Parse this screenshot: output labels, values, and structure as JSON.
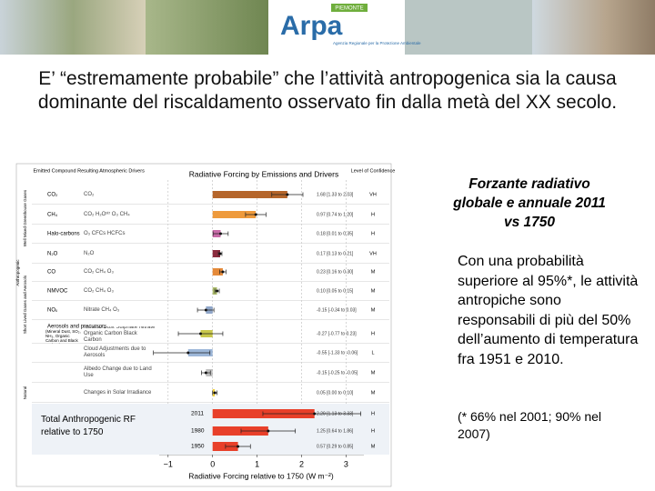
{
  "header": {
    "logo": "Arpa",
    "badge": "PIEMONTE",
    "logo_subtitle": "Agenzia Regionale per la Protezione Ambientale"
  },
  "title": "E’ “estremamente probabile” che l’attività antropogenica sia la causa dominante del riscaldamento osservato fin dalla metà del XX secolo.",
  "figure": {
    "title": "Radiative Forcing by Emissions and Drivers",
    "headers": [
      "Emitted Compound",
      "Resulting Atmospheric Drivers",
      "Level of Confidence"
    ],
    "groups": [
      "Well Mixed Greenhouse Gases",
      "Short Lived Gases and Aerosols",
      "Anthropogenic",
      "Natural"
    ],
    "rows": [
      {
        "compound": "CO₂",
        "drivers": "CO₂",
        "value": 1.68,
        "low": 1.33,
        "high": 2.03,
        "label": "1.68 [1.33 to 2.03]",
        "confidence": "VH",
        "color": "#b5652a"
      },
      {
        "compound": "CH₄",
        "drivers": "CO₂  H₂Oˢᵗʳ  O₃  CH₄",
        "value": 0.97,
        "low": 0.74,
        "high": 1.2,
        "label": "0.97 [0.74 to 1.20]",
        "confidence": "H",
        "color": "#ee9a3c"
      },
      {
        "compound": "Halo-carbons",
        "drivers": "O₃  CFCs  HCFCs",
        "value": 0.18,
        "low": 0.01,
        "high": 0.35,
        "label": "0.18 [0.01 to 0.35]",
        "confidence": "H",
        "color": "#c86ba8"
      },
      {
        "compound": "N₂O",
        "drivers": "N₂O",
        "value": 0.17,
        "low": 0.13,
        "high": 0.21,
        "label": "0.17 [0.13 to 0.21]",
        "confidence": "VH",
        "color": "#8b2c3e"
      },
      {
        "compound": "CO",
        "drivers": "CO₂  CH₄  O₃",
        "value": 0.23,
        "low": 0.16,
        "high": 0.3,
        "label": "0.23 [0.16 to 0.30]",
        "confidence": "M",
        "color": "#e58a3a"
      },
      {
        "compound": "NMVOC",
        "drivers": "CO₂  CH₄  O₃",
        "value": 0.1,
        "low": 0.05,
        "high": 0.15,
        "label": "0.10 [0.05 to 0.15]",
        "confidence": "M",
        "color": "#a9b86a"
      },
      {
        "compound": "NOₓ",
        "drivers": "Nitrate  CH₄  O₃",
        "value": -0.15,
        "low": -0.34,
        "high": 0.03,
        "label": "-0.15 [-0.34 to 0.03]",
        "confidence": "M",
        "color": "#8fa6c9"
      },
      {
        "compound": "Aerosols and precursors",
        "compound_note": "(Mineral Dust, SO₂, NH₃, Organic Carbon and Black Carbon)",
        "drivers": "Mineral Dust  Sulphate  Nitrate  Organic Carbon  Black Carbon",
        "value": -0.27,
        "low": -0.77,
        "high": 0.23,
        "label": "-0.27 [-0.77 to 0.23]",
        "confidence": "H",
        "color": "#c9c84a"
      },
      {
        "drivers": "Cloud Adjustments due to Aerosols",
        "value": -0.55,
        "low": -1.33,
        "high": -0.06,
        "label": "-0.55 [-1.33 to -0.06]",
        "confidence": "L",
        "color": "#9db7d9"
      },
      {
        "drivers": "Albedo Change due to Land Use",
        "value": -0.15,
        "low": -0.25,
        "high": -0.05,
        "label": "-0.15 [-0.25 to -0.05]",
        "confidence": "M",
        "color": "#c0c0c0"
      },
      {
        "drivers": "Changes in Solar Irradiance",
        "value": 0.05,
        "low": 0.0,
        "high": 0.1,
        "label": "0.05 [0.00 to 0.10]",
        "confidence": "M",
        "color": "#f0d040"
      }
    ],
    "total_label": "Total Anthropogenic RF relative to 1750",
    "totals": [
      {
        "year": "2011",
        "value": 2.29,
        "low": 1.13,
        "high": 3.33,
        "label": "2.29 [1.13 to 3.33]",
        "confidence": "H"
      },
      {
        "year": "1980",
        "value": 1.25,
        "low": 0.64,
        "high": 1.86,
        "label": "1.25 [0.64 to 1.86]",
        "confidence": "H"
      },
      {
        "year": "1950",
        "value": 0.57,
        "low": 0.29,
        "high": 0.85,
        "label": "0.57 [0.29 to 0.85]",
        "confidence": "M"
      }
    ],
    "total_color": "#e8402a",
    "xlim": [
      -1.2,
      3.4
    ],
    "xticks": [
      {
        "value": -1,
        "label": "−1"
      },
      0,
      1,
      2,
      3
    ],
    "xlabel": "Radiative Forcing relative to 1750 (W m⁻²)"
  },
  "side": {
    "heading": "Forzante radiativo globale e annuale 2011 vs 1750",
    "body": "Con una probabilità superiore al 95%*, le attività antropiche sono responsabili di più del 50% dell’aumento di temperatura fra 1951 e 2010.",
    "note": "(* 66% nel 2001; 90% nel 2007)"
  }
}
